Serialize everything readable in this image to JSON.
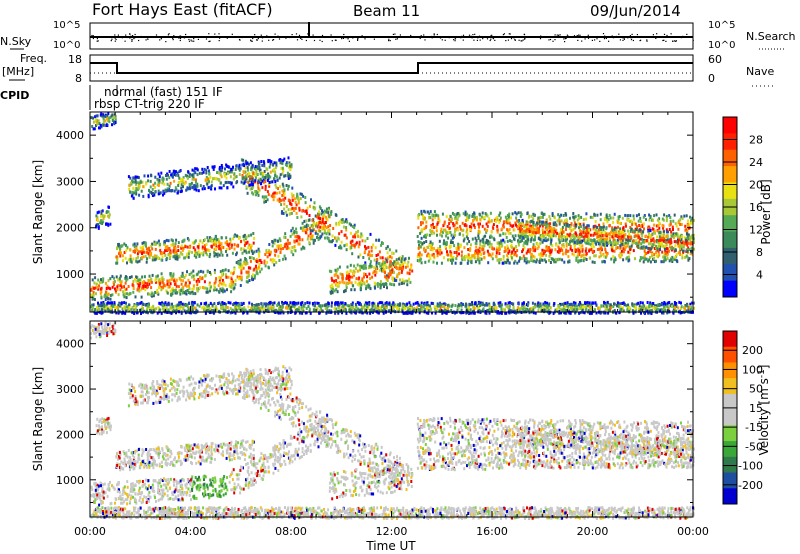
{
  "header": {
    "station": "Fort Hays East (fitACF)",
    "beam": "Beam 11",
    "date": "09/Jun/2014"
  },
  "top_panels": {
    "nsky_label": "N.Sky",
    "nsearch_label": "N.Search",
    "nsky_ticks": [
      "10^5",
      "10^0"
    ],
    "nsearch_ticks": [
      "10^5",
      "10^0"
    ],
    "freq_label": "Freq.",
    "freq_unit": "[MHz]",
    "freq_ticks": [
      "18",
      "8"
    ],
    "nave_label": "Nave",
    "nave_ticks": [
      "60",
      "0"
    ],
    "cpid_label": "CPID",
    "cpid_modes": [
      "normal (fast) 151 IF",
      "rbsp CT-trig 220 IF"
    ]
  },
  "chart_data": [
    {
      "type": "heatmap",
      "name": "power",
      "ylabel": "Slant Range [km]",
      "ylim": [
        180,
        4500
      ],
      "yticks": [
        1000,
        2000,
        3000,
        4000
      ],
      "xlim_hours": [
        0,
        24
      ],
      "colorbar": {
        "label": "Power [dB]",
        "ticks": [
          "28",
          "24",
          "20",
          "16",
          "12",
          "8",
          "4"
        ],
        "colors": [
          "#0000ff",
          "#2050b0",
          "#306070",
          "#3a8a5a",
          "#55aa55",
          "#a8c838",
          "#e8e010",
          "#ffa000",
          "#ff6000",
          "#ff2000",
          "#ff0000"
        ]
      }
    },
    {
      "type": "heatmap",
      "name": "velocity",
      "ylabel": "Slant Range [km]",
      "ylim": [
        180,
        4500
      ],
      "yticks": [
        1000,
        2000,
        3000,
        4000
      ],
      "xlim_hours": [
        0,
        24
      ],
      "colorbar": {
        "label": "Velocity [m s^-1]",
        "ticks": [
          "200",
          "100",
          "50",
          "15",
          "-15",
          "-50",
          "-100",
          "-200"
        ],
        "colors": [
          "#0000d0",
          "#1d4fa0",
          "#2f7a4a",
          "#3aa838",
          "#7cd040",
          "#c8c8c8",
          "#c8c8c8",
          "#f0c020",
          "#ff9000",
          "#ff5000",
          "#e00000"
        ]
      }
    }
  ],
  "x_axis": {
    "tick_labels": [
      "00:00",
      "04:00",
      "08:00",
      "12:00",
      "16:00",
      "20:00",
      "00:00"
    ],
    "label": "Time UT"
  }
}
